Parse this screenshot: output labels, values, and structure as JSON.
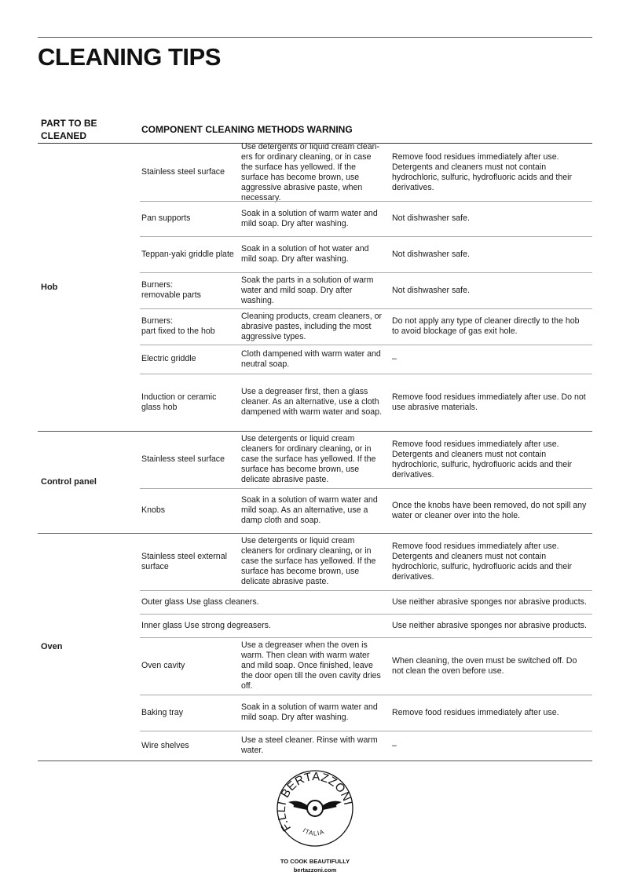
{
  "title": "CLEANING TIPS",
  "header": {
    "part": "PART TO BE CLEANED",
    "part_line1": "PART TO BE",
    "part_line2": "CLEANED",
    "rest": "COMPONENT CLEANING METHODS WARNING"
  },
  "groups": [
    {
      "name": "Hob",
      "rows": [
        {
          "component": "Stainless steel surface",
          "method": "Use detergents or liquid cream clean-ers for ordinary cleaning, or in case the surface has yellowed. If the surface has become brown, use aggressive abrasive paste, when necessary.",
          "warning": "Remove food residues immediately after use. Detergents and cleaners must not contain hydrochloric, sulfuric, hydrofluoric acids and their derivatives."
        },
        {
          "component": "Pan supports",
          "method": "Soak in a solution of warm water and mild soap. Dry after washing.",
          "warning": "Not dishwasher safe."
        },
        {
          "component": "Teppan-yaki griddle plate",
          "method": "Soak in a solution of hot water and mild soap. Dry after washing.",
          "warning": "Not dishwasher safe."
        },
        {
          "component": "Burners:\nremovable parts",
          "method": "Soak the parts in a solution of warm water and mild soap. Dry after washing.",
          "warning": "Not dishwasher safe."
        },
        {
          "component": "Burners:\npart fixed to the hob",
          "method": "Cleaning products, cream cleaners, or abrasive pastes, including the most aggressive types.",
          "warning": "Do not apply any type of cleaner directly to the hob to avoid blockage of gas exit hole."
        },
        {
          "component": "Electric griddle",
          "method": "Cloth dampened with warm water and neutral soap.",
          "warning": "–"
        },
        {
          "component": "Induction or ceramic glass hob",
          "method": "Use a degreaser first, then a glass cleaner. As an alternative, use a cloth dampened with warm water and soap.",
          "warning": "Remove food residues immediately after use. Do not use abrasive materials."
        }
      ]
    },
    {
      "name": "Control panel",
      "rows": [
        {
          "component": "Stainless steel surface",
          "method": "Use detergents or liquid cream cleaners for ordinary cleaning, or in case the surface has yellowed. If the surface has become brown, use delicate abrasive paste.",
          "warning": "Remove food residues immediately after use. Detergents and cleaners must not contain hydrochloric, sulfuric, hydrofluoric acids and their derivatives."
        },
        {
          "component": "Knobs",
          "method": "Soak in a solution of warm water and mild soap. As an alternative, use a damp cloth and soap.",
          "warning": "Once the knobs have been removed, do not spill any water or cleaner over into the hole."
        }
      ]
    },
    {
      "name": "Oven",
      "rows": [
        {
          "component": "Stainless steel external surface",
          "method": "Use detergents or liquid cream cleaners for ordinary cleaning, or in case the surface has yellowed. If the surface has become brown, use delicate abrasive paste.",
          "warning": "Remove food residues immediately after use. Detergents and cleaners must not contain hydrochloric, sulfuric, hydrofluoric acids and their derivatives."
        },
        {
          "combined": "Outer glass Use glass cleaners.",
          "warning": "Use neither abrasive sponges nor abrasive products."
        },
        {
          "combined": "Inner glass Use strong degreasers.",
          "warning": "Use neither abrasive sponges nor abrasive products."
        },
        {
          "component": "Oven cavity",
          "method": "Use a degreaser when the oven is warm. Then clean with warm water and mild soap. Once finished, leave the door open till the oven cavity dries off.",
          "warning": "When cleaning, the oven must be switched off. Do not clean the oven before use."
        },
        {
          "component": "Baking tray",
          "method": "Soak in a solution of warm water and mild soap. Dry after washing.",
          "warning": "Remove food residues immediately after use."
        },
        {
          "component": "Wire shelves",
          "method": "Use a steel cleaner. Rinse with warm water.",
          "warning": "–"
        }
      ]
    }
  ],
  "logo": {
    "brand_text": "F.LLI BERTAZZONI",
    "sub_text": "ITALIA"
  },
  "footer": {
    "tagline": "TO COOK BEAUTIFULLY",
    "website": "bertazzoni.com"
  }
}
